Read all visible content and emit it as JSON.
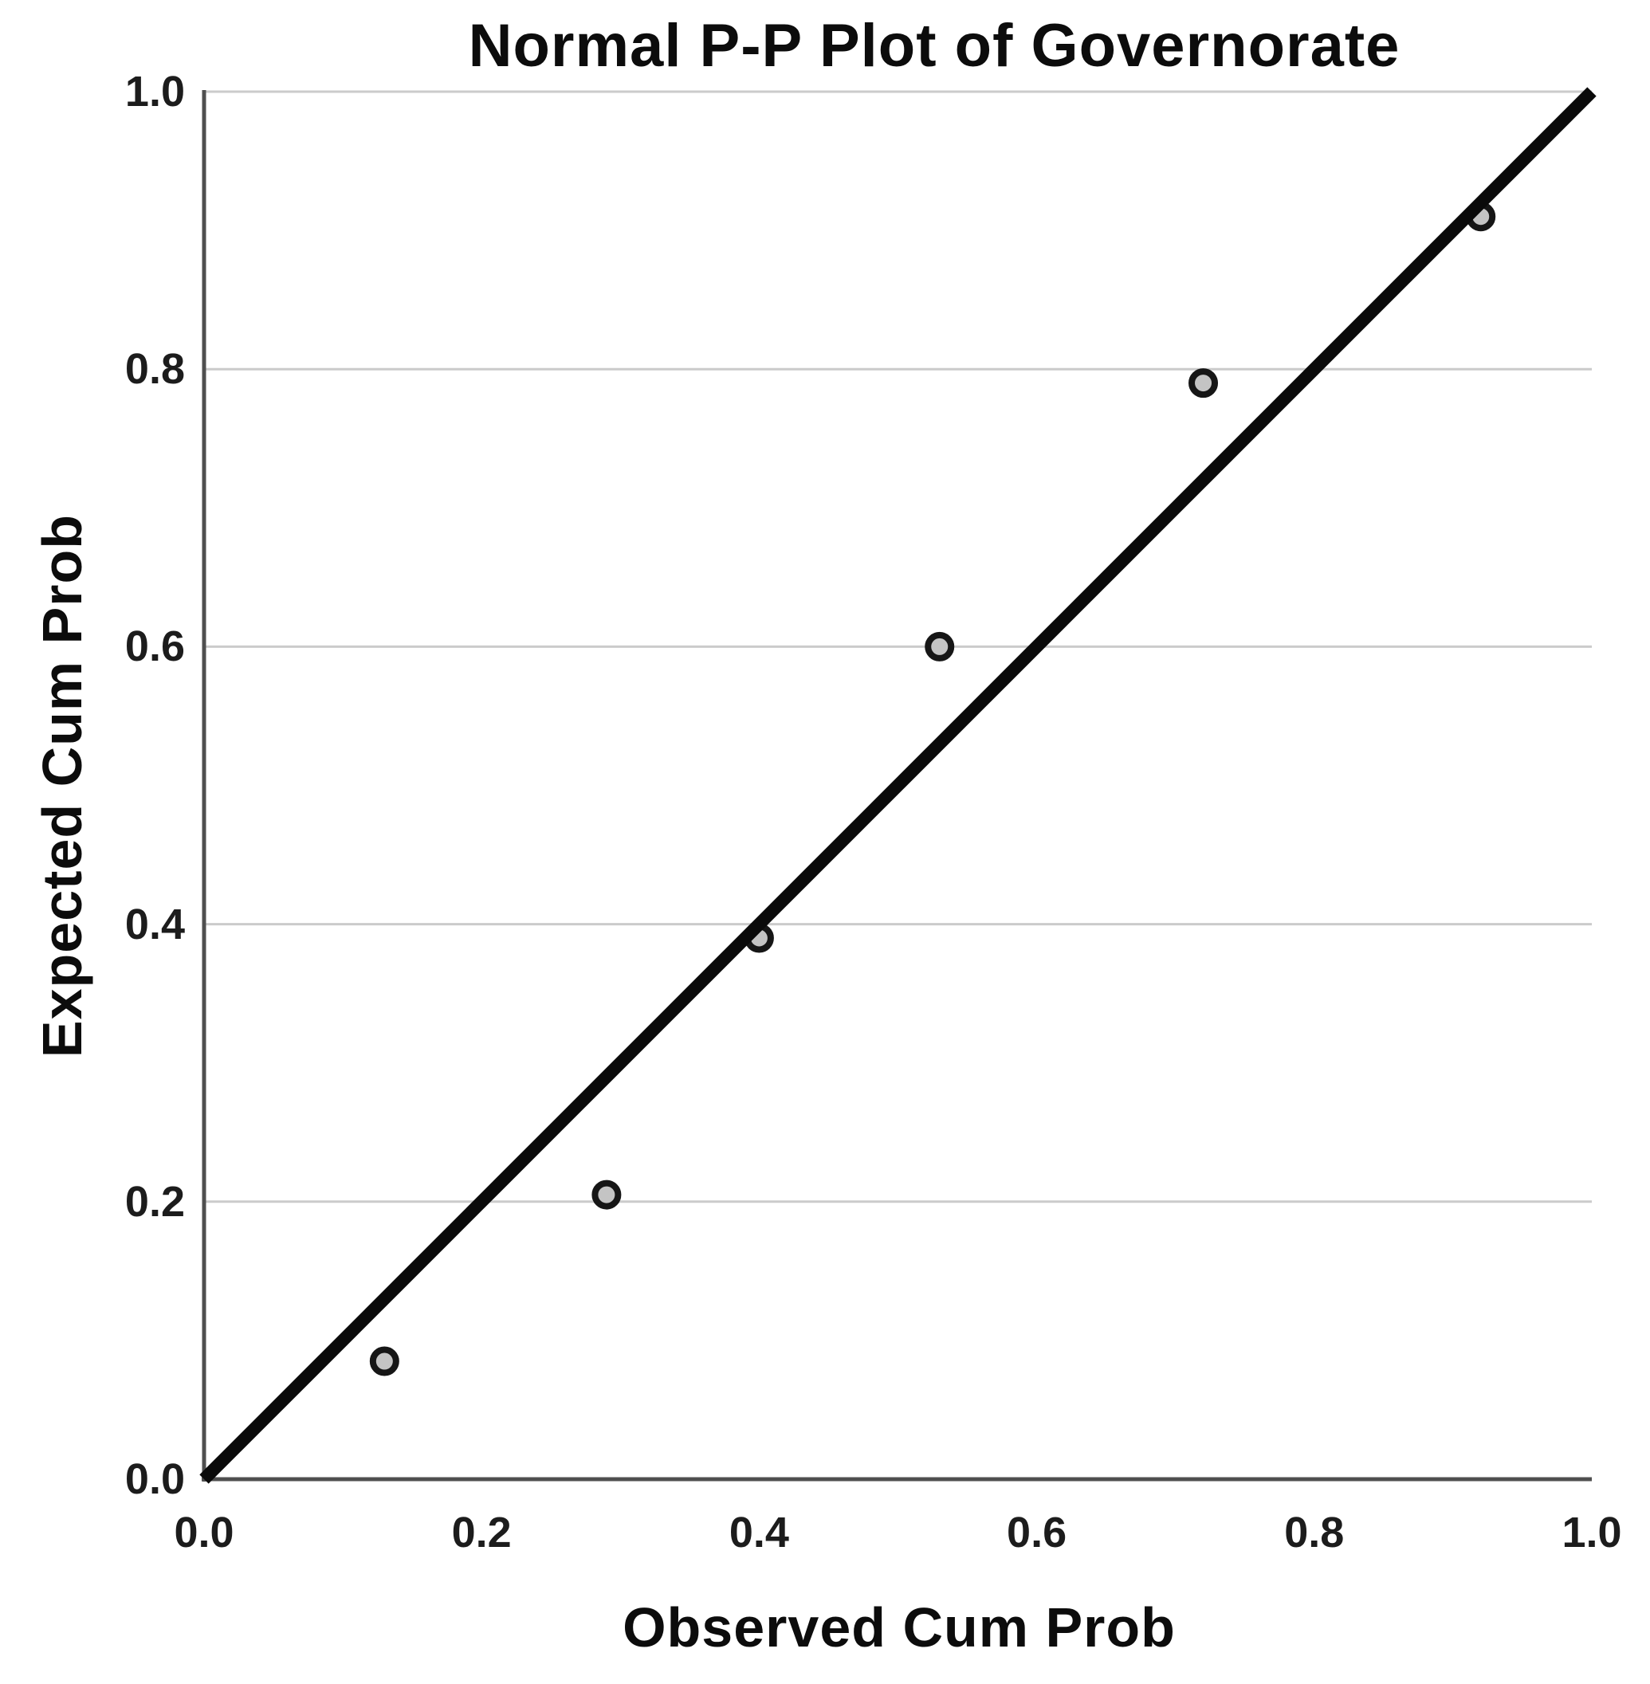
{
  "title": "Normal P-P Plot of Governorate",
  "x_axis": {
    "label": "Observed Cum Prob",
    "tick_labels": [
      "0.0",
      "0.2",
      "0.4",
      "0.6",
      "0.8",
      "1.0"
    ]
  },
  "y_axis": {
    "label": "Expected Cum Prob",
    "tick_labels": [
      "0.0",
      "0.2",
      "0.4",
      "0.6",
      "0.8",
      "1.0"
    ]
  },
  "chart_data": {
    "type": "scatter",
    "title": "Normal P-P Plot of Governorate",
    "xlabel": "Observed Cum Prob",
    "ylabel": "Expected Cum Prob",
    "xlim": [
      0.0,
      1.0
    ],
    "ylim": [
      0.0,
      1.0
    ],
    "x_ticks": [
      0.0,
      0.2,
      0.4,
      0.6,
      0.8,
      1.0
    ],
    "y_ticks": [
      0.0,
      0.2,
      0.4,
      0.6,
      0.8,
      1.0
    ],
    "grid": "horizontal-only",
    "legend": "none",
    "points": [
      {
        "x": 0.13,
        "y": 0.085
      },
      {
        "x": 0.29,
        "y": 0.205
      },
      {
        "x": 0.4,
        "y": 0.39
      },
      {
        "x": 0.53,
        "y": 0.6
      },
      {
        "x": 0.72,
        "y": 0.79
      },
      {
        "x": 0.92,
        "y": 0.91
      }
    ],
    "reference_line": {
      "from": [
        0.0,
        0.0
      ],
      "to": [
        1.0,
        1.0
      ]
    }
  },
  "colors": {
    "background": "#ffffff",
    "grid": "#cbcbcb",
    "axis": "#4f4f4f",
    "reference_line": "#0a0a0a",
    "marker_fill": "#c4c4c4",
    "marker_stroke": "#161616",
    "text": "#1c1c1c"
  }
}
